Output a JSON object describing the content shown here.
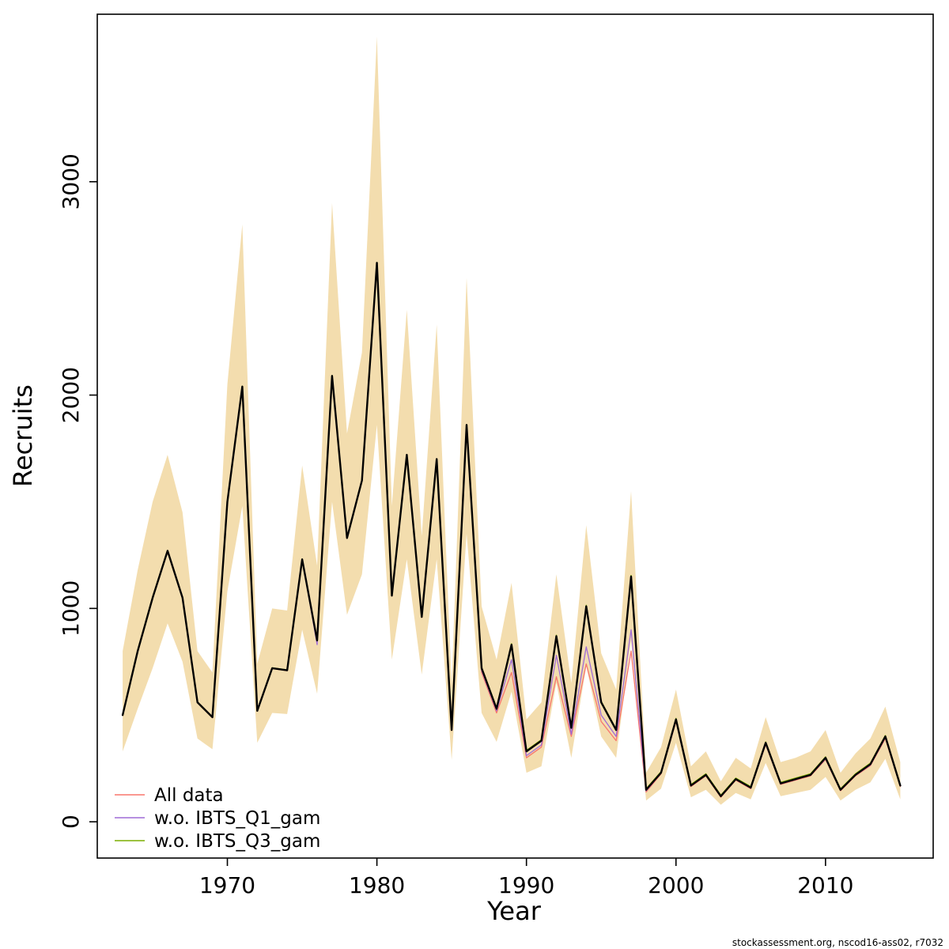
{
  "footer": {
    "credit": "stockassessment.org, nscod16-ass02, r7032"
  },
  "chart_data": {
    "type": "line",
    "title": "",
    "xlabel": "Year",
    "ylabel": "Recruits",
    "grid": false,
    "legend_position": "bottom-left",
    "xlim": [
      1961.3,
      2017.2
    ],
    "ylim": [
      -170,
      3785
    ],
    "x_ticks": [
      1970,
      1980,
      1990,
      2000,
      2010
    ],
    "y_ticks": [
      0,
      1000,
      2000,
      3000
    ],
    "x": [
      1963,
      1964,
      1965,
      1966,
      1967,
      1968,
      1969,
      1970,
      1971,
      1972,
      1973,
      1974,
      1975,
      1976,
      1977,
      1978,
      1979,
      1980,
      1981,
      1982,
      1983,
      1984,
      1985,
      1986,
      1987,
      1988,
      1989,
      1990,
      1991,
      1992,
      1993,
      1994,
      1995,
      1996,
      1997,
      1998,
      1999,
      2000,
      2001,
      2002,
      2003,
      2004,
      2005,
      2006,
      2007,
      2008,
      2009,
      2010,
      2011,
      2012,
      2013,
      2014,
      2015
    ],
    "band": {
      "name": "confidence-band",
      "color": "#f3ddae",
      "upper": [
        800,
        1180,
        1500,
        1720,
        1450,
        800,
        700,
        2050,
        2800,
        740,
        1000,
        990,
        1670,
        1200,
        2900,
        1820,
        2200,
        3680,
        1480,
        2400,
        1340,
        2330,
        640,
        2550,
        1010,
        760,
        1120,
        480,
        560,
        1160,
        650,
        1390,
        790,
        620,
        1550,
        230,
        350,
        620,
        260,
        330,
        190,
        300,
        250,
        490,
        280,
        300,
        330,
        430,
        230,
        320,
        390,
        540,
        280
      ],
      "lower": [
        330,
        530,
        720,
        930,
        750,
        390,
        340,
        1080,
        1480,
        370,
        510,
        505,
        900,
        600,
        1500,
        970,
        1160,
        1860,
        760,
        1230,
        690,
        1230,
        290,
        1350,
        510,
        375,
        610,
        230,
        260,
        650,
        300,
        730,
        400,
        300,
        850,
        100,
        155,
        370,
        115,
        150,
        80,
        135,
        105,
        275,
        120,
        135,
        150,
        210,
        100,
        150,
        185,
        295,
        105
      ]
    },
    "series": [
      {
        "name": "All data",
        "color": "#f8766d",
        "width": 1.3,
        "in_legend": true,
        "values": [
          500,
          800,
          1050,
          1265,
          1045,
          558,
          488,
          1495,
          2035,
          518,
          718,
          708,
          1228,
          848,
          2085,
          1328,
          1595,
          2615,
          1058,
          1715,
          958,
          1695,
          428,
          1855,
          700,
          510,
          700,
          300,
          350,
          680,
          400,
          740,
          470,
          380,
          800,
          140,
          225,
          470,
          165,
          215,
          115,
          195,
          155,
          362,
          175,
          195,
          215,
          292,
          145,
          215,
          263,
          390,
          165
        ]
      },
      {
        "name": "w.o. IBTS_Q1_gam",
        "color": "#9f6cd5",
        "width": 1.3,
        "in_legend": true,
        "values": [
          502,
          802,
          1052,
          1268,
          1048,
          560,
          490,
          1498,
          2038,
          520,
          720,
          710,
          1230,
          830,
          2088,
          1330,
          1598,
          2618,
          1060,
          1718,
          960,
          1698,
          430,
          1858,
          710,
          520,
          760,
          310,
          360,
          780,
          410,
          820,
          500,
          400,
          900,
          145,
          228,
          475,
          168,
          218,
          118,
          198,
          158,
          365,
          178,
          198,
          218,
          295,
          148,
          218,
          266,
          395,
          168
        ]
      },
      {
        "name": "w.o. IBTS_Q3_gam",
        "color": "#7cae00",
        "width": 1.3,
        "in_legend": true,
        "values": [
          505,
          805,
          1055,
          1272,
          1052,
          562,
          492,
          1502,
          2042,
          522,
          722,
          712,
          1232,
          852,
          2092,
          1332,
          1602,
          2622,
          1062,
          1722,
          962,
          1702,
          432,
          1862,
          725,
          535,
          835,
          335,
          385,
          875,
          445,
          1015,
          565,
          435,
          1155,
          155,
          235,
          485,
          175,
          225,
          125,
          205,
          165,
          375,
          185,
          205,
          225,
          305,
          155,
          225,
          275,
          405,
          175
        ]
      },
      {
        "name": "estimate",
        "color": "#000000",
        "width": 2.4,
        "in_legend": false,
        "values": [
          500,
          800,
          1050,
          1270,
          1050,
          560,
          490,
          1500,
          2040,
          520,
          720,
          710,
          1230,
          850,
          2090,
          1330,
          1600,
          2620,
          1060,
          1720,
          960,
          1700,
          430,
          1860,
          720,
          530,
          830,
          330,
          380,
          870,
          440,
          1010,
          560,
          430,
          1150,
          150,
          230,
          480,
          170,
          220,
          120,
          200,
          160,
          370,
          180,
          200,
          220,
          300,
          150,
          220,
          270,
          400,
          170
        ]
      }
    ]
  }
}
